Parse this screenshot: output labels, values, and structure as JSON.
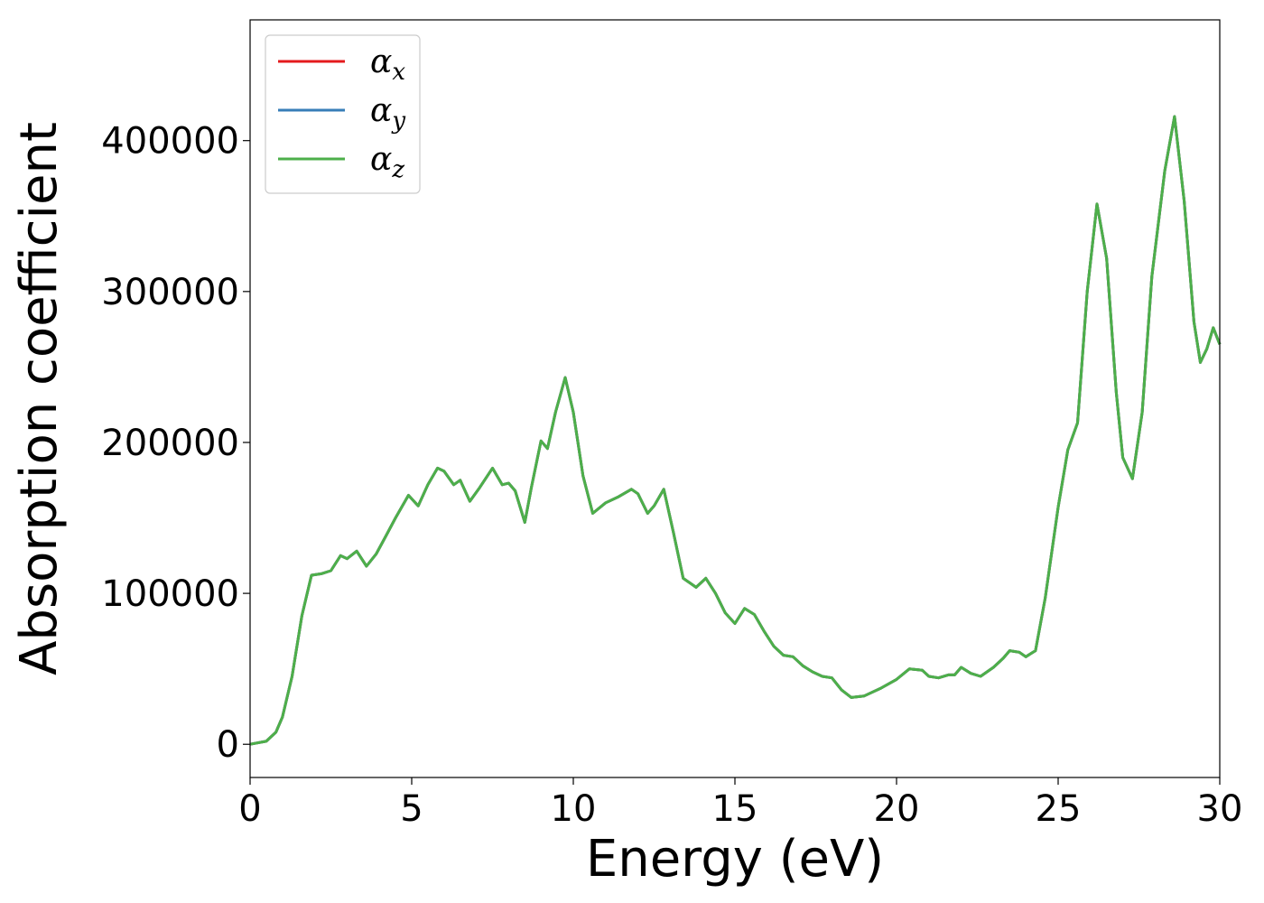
{
  "chart_data": {
    "type": "line",
    "xlabel": "Energy (eV)",
    "ylabel": "Absorption coefficient",
    "xlim": [
      0,
      30
    ],
    "ylim": [
      -22000,
      480000
    ],
    "xticks": [
      0,
      5,
      10,
      15,
      20,
      25,
      30
    ],
    "yticks": [
      0,
      100000,
      200000,
      300000,
      400000
    ],
    "xtick_labels": [
      "0",
      "5",
      "10",
      "15",
      "20",
      "25",
      "30"
    ],
    "ytick_labels": [
      "0",
      "100000",
      "200000",
      "300000",
      "400000"
    ],
    "grid": false,
    "legend_position": "top-left",
    "x": [
      0,
      0.5,
      0.8,
      1.0,
      1.3,
      1.6,
      1.9,
      2.2,
      2.5,
      2.8,
      3.0,
      3.3,
      3.6,
      3.9,
      4.2,
      4.5,
      4.9,
      5.2,
      5.5,
      5.8,
      6.0,
      6.3,
      6.5,
      6.8,
      7.1,
      7.5,
      7.8,
      8.0,
      8.2,
      8.5,
      8.7,
      9.0,
      9.2,
      9.45,
      9.75,
      10.0,
      10.3,
      10.6,
      11.0,
      11.4,
      11.8,
      12.0,
      12.3,
      12.5,
      12.8,
      13.1,
      13.4,
      13.8,
      14.1,
      14.4,
      14.7,
      15.0,
      15.3,
      15.6,
      15.9,
      16.2,
      16.5,
      16.8,
      17.1,
      17.4,
      17.7,
      18.0,
      18.3,
      18.6,
      19.0,
      19.5,
      20.0,
      20.4,
      20.8,
      21.0,
      21.3,
      21.6,
      21.8,
      22.0,
      22.3,
      22.6,
      23.0,
      23.3,
      23.5,
      23.8,
      24.0,
      24.3,
      24.6,
      25.0,
      25.3,
      25.6,
      25.9,
      26.2,
      26.5,
      26.8,
      27.0,
      27.3,
      27.6,
      27.9,
      28.3,
      28.6,
      28.9,
      29.2,
      29.4,
      29.6,
      29.8,
      30.0
    ],
    "series": [
      {
        "name": "αx",
        "color": "#e41a1c",
        "values": [
          0,
          2000,
          8000,
          18000,
          45000,
          85000,
          112000,
          113000,
          115000,
          125000,
          123000,
          128000,
          118000,
          126000,
          138000,
          150000,
          165000,
          158000,
          172000,
          183000,
          181000,
          172000,
          175000,
          161000,
          170000,
          183000,
          172000,
          173000,
          168000,
          147000,
          170000,
          201000,
          196000,
          220000,
          243000,
          220000,
          178000,
          153000,
          160000,
          164000,
          169000,
          166000,
          153000,
          158000,
          169000,
          140000,
          110000,
          104000,
          110000,
          100000,
          87000,
          80000,
          90000,
          86000,
          75000,
          65000,
          59000,
          58000,
          52000,
          48000,
          45000,
          44000,
          36000,
          31000,
          32000,
          37000,
          43000,
          50000,
          49000,
          45000,
          44000,
          46000,
          46000,
          51000,
          47000,
          45000,
          51000,
          57000,
          62000,
          61000,
          58000,
          62000,
          97000,
          157000,
          195000,
          213000,
          300000,
          358000,
          322000,
          233000,
          190000,
          176000,
          220000,
          310000,
          380000,
          416000,
          360000,
          280000,
          253000,
          262000,
          276000,
          265000
        ]
      },
      {
        "name": "αy",
        "color": "#377eb8",
        "values": [
          0,
          2000,
          8000,
          18000,
          45000,
          85000,
          112000,
          113000,
          115000,
          125000,
          123000,
          128000,
          118000,
          126000,
          138000,
          150000,
          165000,
          158000,
          172000,
          183000,
          181000,
          172000,
          175000,
          161000,
          170000,
          183000,
          172000,
          173000,
          168000,
          147000,
          170000,
          201000,
          196000,
          220000,
          243000,
          220000,
          178000,
          153000,
          160000,
          164000,
          169000,
          166000,
          153000,
          158000,
          169000,
          140000,
          110000,
          104000,
          110000,
          100000,
          87000,
          80000,
          90000,
          86000,
          75000,
          65000,
          59000,
          58000,
          52000,
          48000,
          45000,
          44000,
          36000,
          31000,
          32000,
          37000,
          43000,
          50000,
          49000,
          45000,
          44000,
          46000,
          46000,
          51000,
          47000,
          45000,
          51000,
          57000,
          62000,
          61000,
          58000,
          62000,
          97000,
          157000,
          195000,
          213000,
          300000,
          358000,
          322000,
          233000,
          190000,
          176000,
          220000,
          310000,
          380000,
          416000,
          360000,
          280000,
          253000,
          262000,
          276000,
          265000
        ]
      },
      {
        "name": "αz",
        "color": "#4daf4a",
        "values": [
          0,
          2000,
          8000,
          18000,
          45000,
          85000,
          112000,
          113000,
          115000,
          125000,
          123000,
          128000,
          118000,
          126000,
          138000,
          150000,
          165000,
          158000,
          172000,
          183000,
          181000,
          172000,
          175000,
          161000,
          170000,
          183000,
          172000,
          173000,
          168000,
          147000,
          170000,
          201000,
          196000,
          220000,
          243000,
          220000,
          178000,
          153000,
          160000,
          164000,
          169000,
          166000,
          153000,
          158000,
          169000,
          140000,
          110000,
          104000,
          110000,
          100000,
          87000,
          80000,
          90000,
          86000,
          75000,
          65000,
          59000,
          58000,
          52000,
          48000,
          45000,
          44000,
          36000,
          31000,
          32000,
          37000,
          43000,
          50000,
          49000,
          45000,
          44000,
          46000,
          46000,
          51000,
          47000,
          45000,
          51000,
          57000,
          62000,
          61000,
          58000,
          62000,
          97000,
          157000,
          195000,
          213000,
          300000,
          358000,
          322000,
          233000,
          190000,
          176000,
          220000,
          310000,
          380000,
          416000,
          360000,
          280000,
          253000,
          262000,
          276000,
          265000
        ]
      }
    ],
    "legend": [
      {
        "symbol": "α",
        "subscript": "x",
        "color": "#e41a1c"
      },
      {
        "symbol": "α",
        "subscript": "y",
        "color": "#377eb8"
      },
      {
        "symbol": "α",
        "subscript": "z",
        "color": "#4daf4a"
      }
    ]
  }
}
